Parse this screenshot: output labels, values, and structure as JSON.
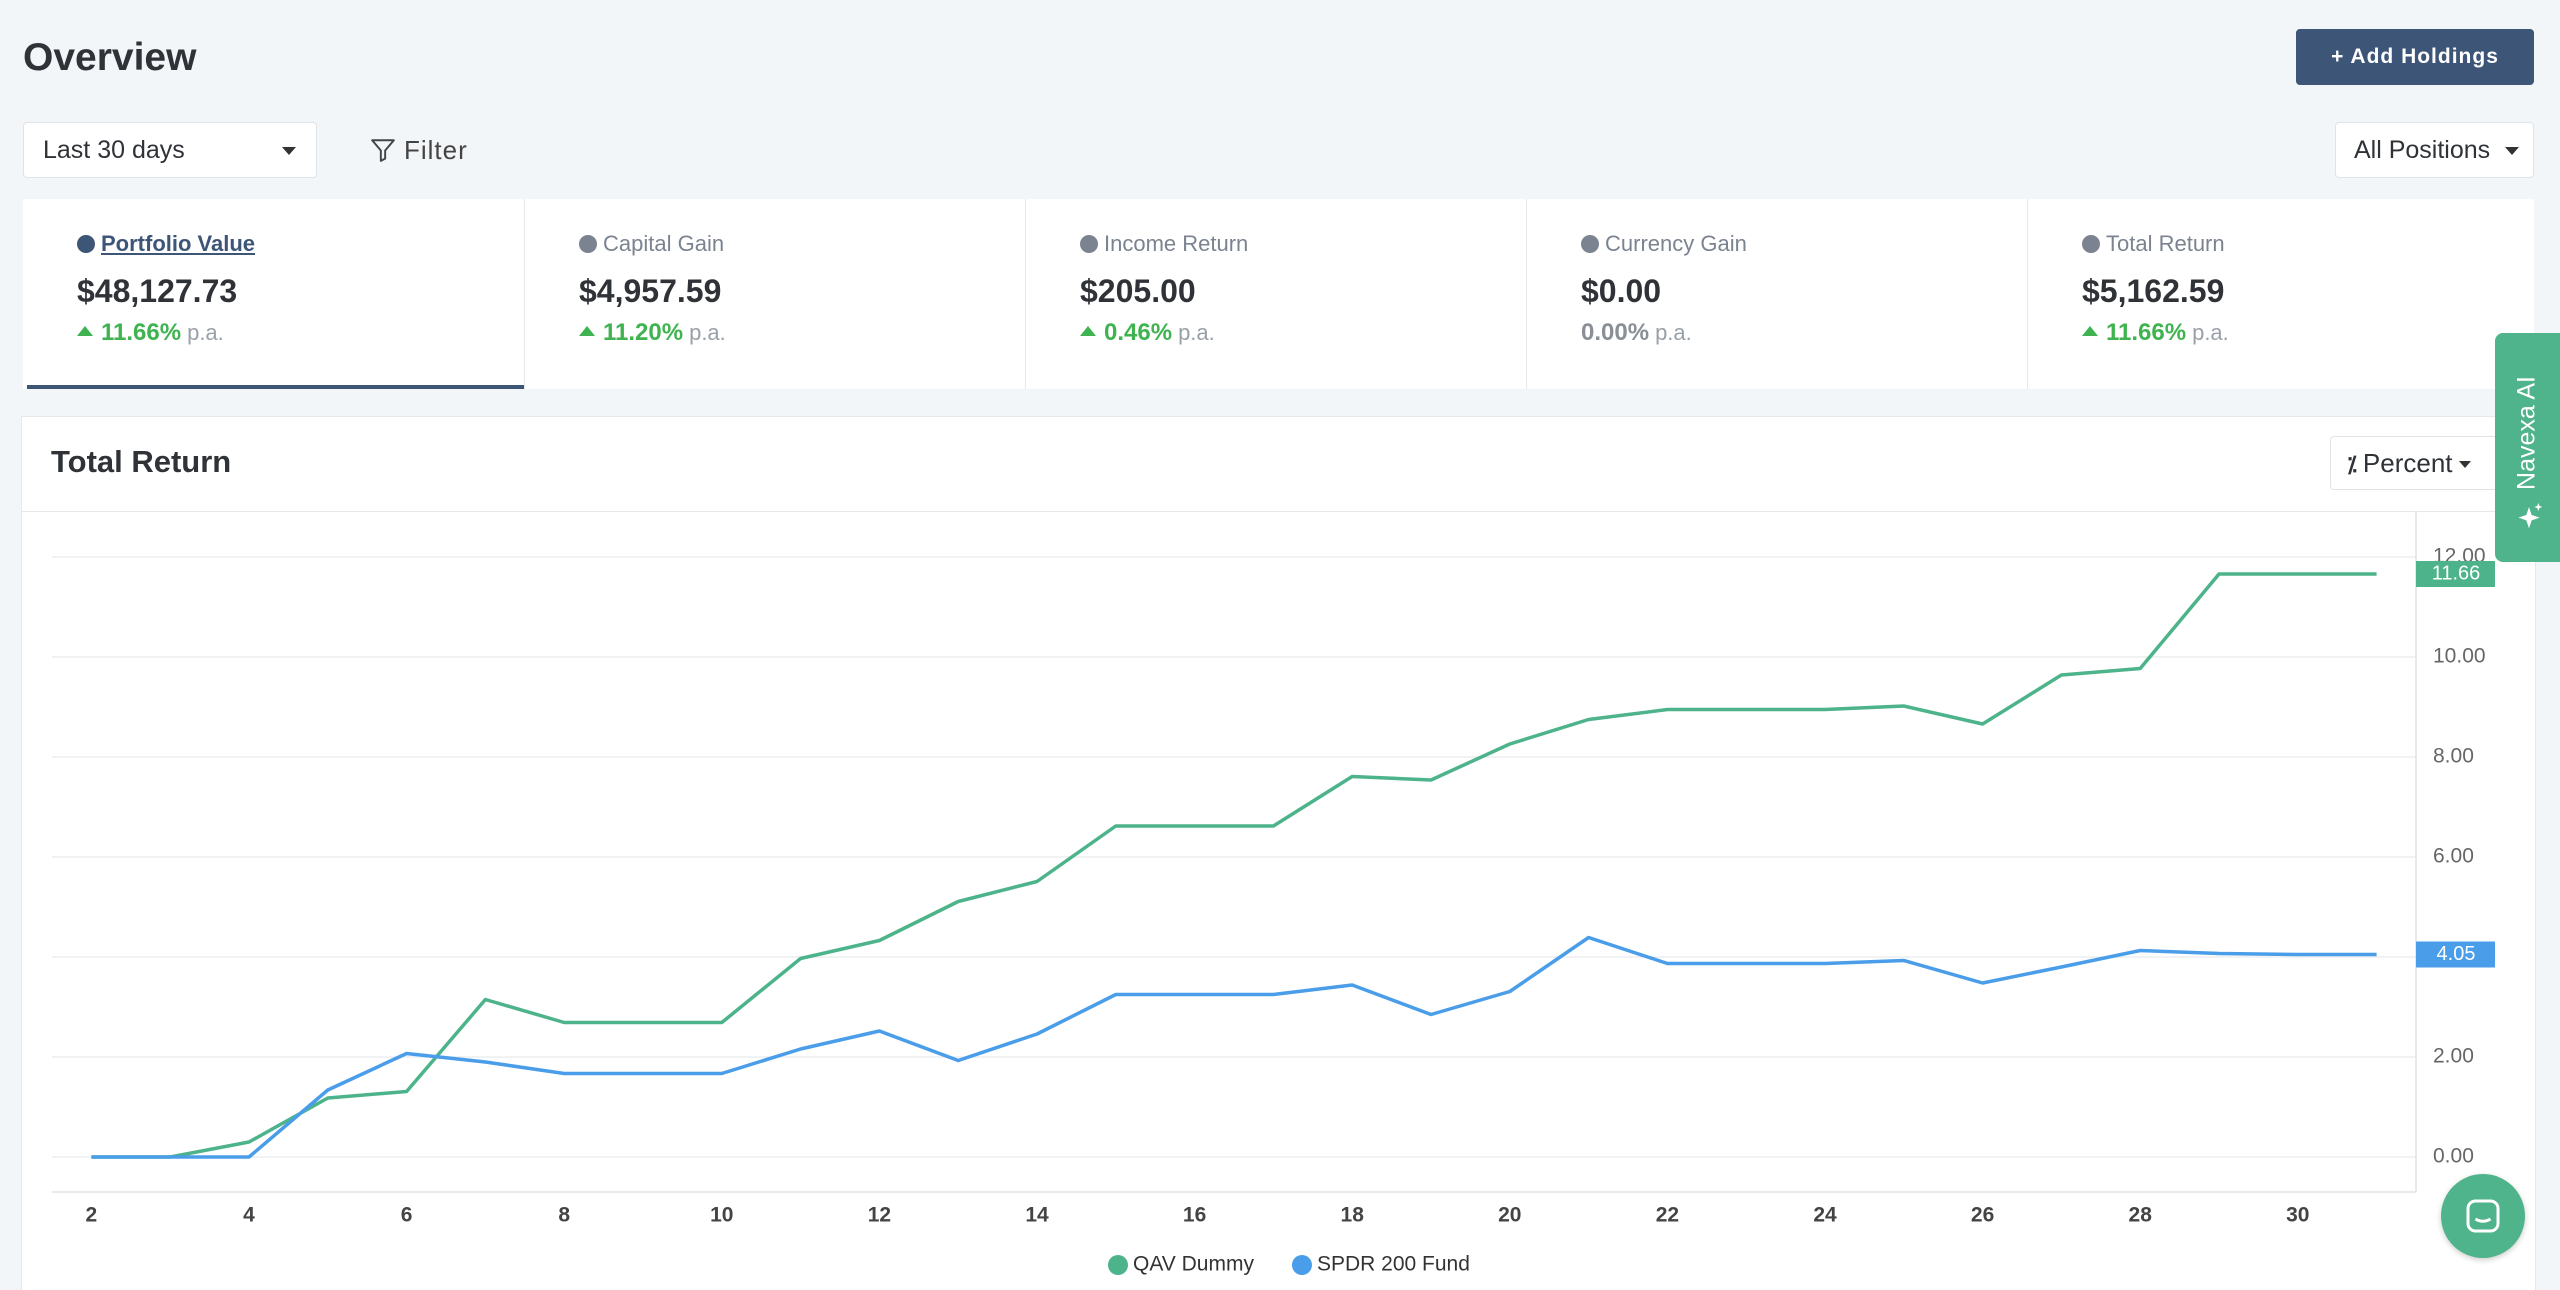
{
  "header": {
    "title": "Overview",
    "add_button": "+ Add Holdings"
  },
  "toolbar": {
    "period": "Last 30 days",
    "filter": "Filter",
    "positions": "All Positions"
  },
  "stats": [
    {
      "label": "Portfolio Value",
      "value": "$48,127.73",
      "change": "11.66%",
      "unit": "p.a."
    },
    {
      "label": "Capital Gain",
      "value": "$4,957.59",
      "change": "11.20%",
      "unit": "p.a."
    },
    {
      "label": "Income Return",
      "value": "$205.00",
      "change": "0.46%",
      "unit": "p.a."
    },
    {
      "label": "Currency Gain",
      "value": "$0.00",
      "change": "0.00%",
      "unit": "p.a."
    },
    {
      "label": "Total Return",
      "value": "$5,162.59",
      "change": "11.66%",
      "unit": "p.a."
    }
  ],
  "side_tab": "Navexa AI",
  "chart_data": {
    "type": "line",
    "title": "Total Return",
    "mode_button": "Percent",
    "x": [
      2,
      3,
      4,
      5,
      6,
      7,
      8,
      9,
      10,
      11,
      12,
      13,
      14,
      15,
      16,
      17,
      18,
      19,
      20,
      21,
      22,
      23,
      24,
      25,
      26,
      27,
      28,
      29,
      30,
      31
    ],
    "series": [
      {
        "name": "QAV Dummy",
        "color": "#4db38a",
        "values": [
          0,
          0,
          0.3,
          1.18,
          1.31,
          3.15,
          2.69,
          2.69,
          2.69,
          3.97,
          4.33,
          5.11,
          5.51,
          6.62,
          6.62,
          6.62,
          7.61,
          7.54,
          8.26,
          8.75,
          8.95,
          8.95,
          8.95,
          9.02,
          8.66,
          9.64,
          9.77,
          11.66,
          11.66,
          11.66
        ]
      },
      {
        "name": "SPDR 200 Fund",
        "color": "#4a9de8",
        "values": [
          0,
          0,
          0,
          1.34,
          2.07,
          1.9,
          1.67,
          1.67,
          1.67,
          2.16,
          2.52,
          1.93,
          2.46,
          3.25,
          3.25,
          3.25,
          3.44,
          2.85,
          3.31,
          4.39,
          3.87,
          3.87,
          3.87,
          3.93,
          3.48,
          3.8,
          4.13,
          4.07,
          4.05,
          4.05
        ]
      }
    ],
    "xlim": [
      1.5,
      31.5
    ],
    "xticks": [
      2,
      4,
      6,
      8,
      10,
      12,
      14,
      16,
      18,
      20,
      22,
      24,
      26,
      28,
      30
    ],
    "ylim": [
      -0.7,
      12.9
    ],
    "yticks": [
      {
        "value": 0,
        "label": "0.00"
      },
      {
        "value": 2,
        "label": "2.00"
      },
      {
        "value": 4,
        "label": "4.00"
      },
      {
        "value": 6,
        "label": "6.00"
      },
      {
        "value": 8,
        "label": "8.00"
      },
      {
        "value": 10,
        "label": "10.00"
      },
      {
        "value": 12,
        "label": "12.00"
      }
    ],
    "grid": true
  }
}
